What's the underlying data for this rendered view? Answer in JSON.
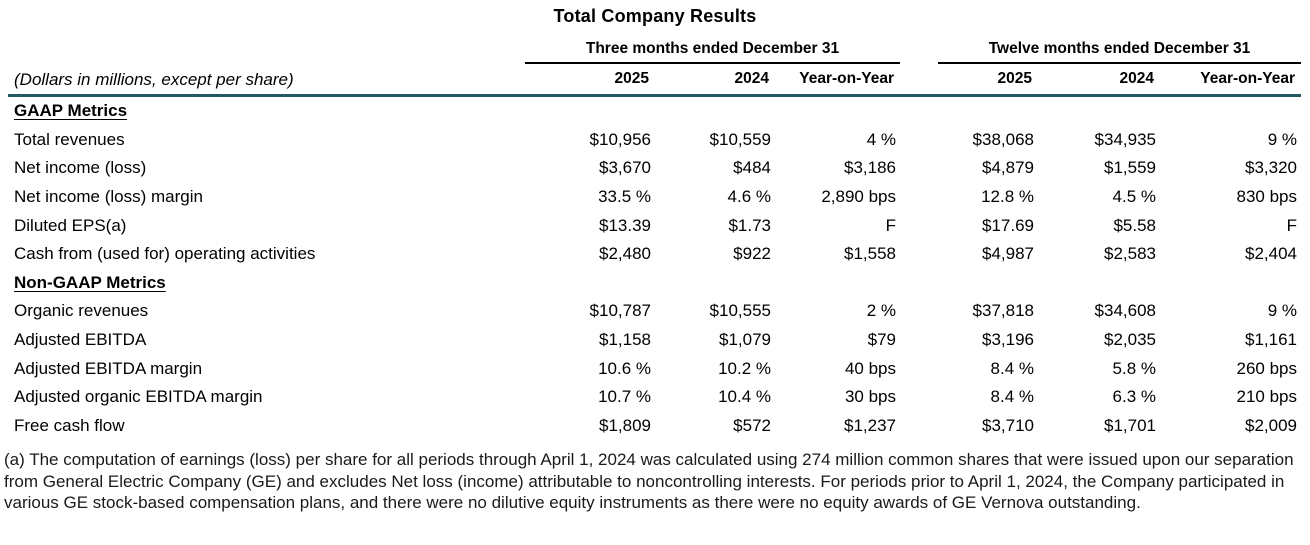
{
  "title": "Total Company Results",
  "table": {
    "row_label_note": "(Dollars in millions, except per share)",
    "groups": [
      {
        "label": "Three months ended December 31",
        "columns": [
          "2025",
          "2024",
          "Year-on-Year"
        ]
      },
      {
        "label": "Twelve months ended December 31",
        "columns": [
          "2025",
          "2024",
          "Year-on-Year"
        ]
      }
    ],
    "sections": [
      {
        "header": "GAAP Metrics",
        "rows": [
          {
            "label": "Total revenues",
            "three_months": [
              "$10,956",
              "$10,559",
              "4 %"
            ],
            "twelve_months": [
              "$38,068",
              "$34,935",
              "9 %"
            ]
          },
          {
            "label": "Net income (loss)",
            "three_months": [
              "$3,670",
              "$484",
              "$3,186"
            ],
            "twelve_months": [
              "$4,879",
              "$1,559",
              "$3,320"
            ]
          },
          {
            "label": "Net income (loss) margin",
            "three_months": [
              "33.5 %",
              "4.6 %",
              "2,890 bps"
            ],
            "twelve_months": [
              "12.8 %",
              "4.5 %",
              "830 bps"
            ]
          },
          {
            "label": "Diluted EPS(a)",
            "three_months": [
              "$13.39",
              "$1.73",
              "F"
            ],
            "twelve_months": [
              "$17.69",
              "$5.58",
              "F"
            ]
          },
          {
            "label": "Cash from (used for) operating activities",
            "three_months": [
              "$2,480",
              "$922",
              "$1,558"
            ],
            "twelve_months": [
              "$4,987",
              "$2,583",
              "$2,404"
            ]
          }
        ]
      },
      {
        "header": "Non-GAAP Metrics",
        "rows": [
          {
            "label": "Organic revenues",
            "three_months": [
              "$10,787",
              "$10,555",
              "2 %"
            ],
            "twelve_months": [
              "$37,818",
              "$34,608",
              "9 %"
            ]
          },
          {
            "label": "Adjusted EBITDA",
            "three_months": [
              "$1,158",
              "$1,079",
              "$79"
            ],
            "twelve_months": [
              "$3,196",
              "$2,035",
              "$1,161"
            ]
          },
          {
            "label": "Adjusted EBITDA margin",
            "three_months": [
              "10.6 %",
              "10.2 %",
              "40 bps"
            ],
            "twelve_months": [
              "8.4 %",
              "5.8 %",
              "260 bps"
            ]
          },
          {
            "label": "Adjusted organic EBITDA margin",
            "three_months": [
              "10.7 %",
              "10.4 %",
              "30 bps"
            ],
            "twelve_months": [
              "8.4 %",
              "6.3 %",
              "210 bps"
            ]
          },
          {
            "label": "Free cash flow",
            "three_months": [
              "$1,809",
              "$572",
              "$1,237"
            ],
            "twelve_months": [
              "$3,710",
              "$1,701",
              "$2,009"
            ]
          }
        ]
      }
    ]
  },
  "colors": {
    "rule_teal": "#215A5F",
    "text": "#000000"
  },
  "footnote": "(a) The computation of earnings (loss) per share for all periods through April 1, 2024 was calculated using 274 million common shares that were issued upon our separation from General Electric Company (GE) and excludes Net loss (income) attributable to noncontrolling interests. For periods prior to April 1, 2024, the Company participated in various GE stock-based compensation plans, and there were no dilutive equity instruments as there were no equity awards of GE Vernova outstanding."
}
